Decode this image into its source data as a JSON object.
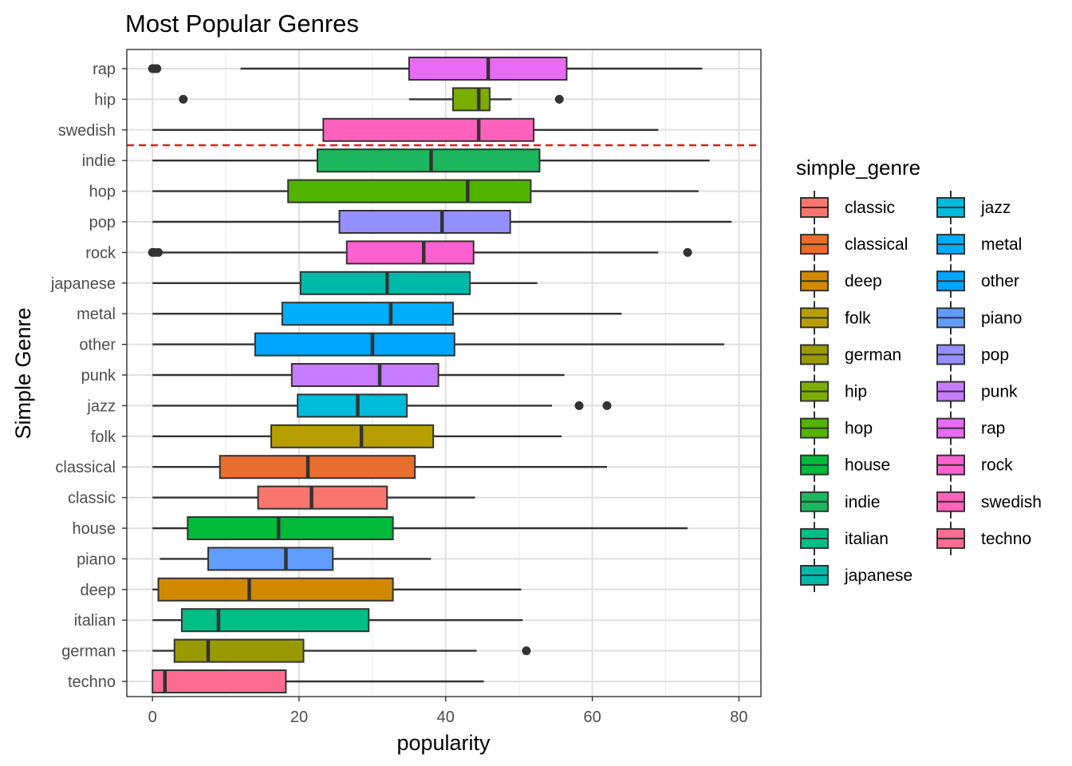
{
  "chart_data": {
    "type": "boxplot",
    "orientation": "horizontal",
    "title": "Most Popular Genres",
    "xlabel": "popularity",
    "ylabel": "Simple Genre",
    "xlim": [
      -3.5,
      83
    ],
    "xticks": [
      0,
      20,
      40,
      60,
      80
    ],
    "grid": true,
    "reference_line": {
      "between": [
        "swedish",
        "indie"
      ],
      "color": "#E41A1C",
      "style": "dashed"
    },
    "categories": [
      "rap",
      "hip",
      "swedish",
      "indie",
      "hop",
      "pop",
      "rock",
      "japanese",
      "metal",
      "other",
      "punk",
      "jazz",
      "folk",
      "classical",
      "classic",
      "house",
      "piano",
      "deep",
      "italian",
      "german",
      "techno"
    ],
    "boxes": [
      {
        "genre": "rap",
        "whisker_low": 12,
        "q1": 35,
        "median": 45.8,
        "q3": 56.5,
        "whisker_high": 75,
        "outliers": [
          0,
          0.3,
          0.6
        ],
        "color": "#E76BF3"
      },
      {
        "genre": "hip",
        "whisker_low": 35,
        "q1": 41,
        "median": 44.5,
        "q3": 46,
        "whisker_high": 49,
        "outliers": [
          4.2,
          55.5
        ],
        "color": "#7CAE00"
      },
      {
        "genre": "swedish",
        "whisker_low": 0,
        "q1": 23.3,
        "median": 44.5,
        "q3": 52,
        "whisker_high": 69,
        "outliers": [],
        "color": "#FF62BC"
      },
      {
        "genre": "indie",
        "whisker_low": 0,
        "q1": 22.5,
        "median": 38,
        "q3": 52.8,
        "whisker_high": 76,
        "outliers": [],
        "color": "#1CB75E"
      },
      {
        "genre": "hop",
        "whisker_low": 0,
        "q1": 18.5,
        "median": 43,
        "q3": 51.6,
        "whisker_high": 74.5,
        "outliers": [],
        "color": "#53B400"
      },
      {
        "genre": "pop",
        "whisker_low": 0,
        "q1": 25.5,
        "median": 39.5,
        "q3": 48.8,
        "whisker_high": 79,
        "outliers": [],
        "color": "#9590FF"
      },
      {
        "genre": "rock",
        "whisker_low": 0,
        "q1": 26.5,
        "median": 37,
        "q3": 43.8,
        "whisker_high": 69,
        "outliers": [
          0,
          0.3,
          0.8,
          73
        ],
        "color": "#FD61D1"
      },
      {
        "genre": "japanese",
        "whisker_low": 0,
        "q1": 20.2,
        "median": 32,
        "q3": 43.3,
        "whisker_high": 52.5,
        "outliers": [],
        "color": "#00B8A8"
      },
      {
        "genre": "metal",
        "whisker_low": 0,
        "q1": 17.7,
        "median": 32.5,
        "q3": 41,
        "whisker_high": 64,
        "outliers": [],
        "color": "#00ADFA"
      },
      {
        "genre": "other",
        "whisker_low": 0,
        "q1": 14,
        "median": 30,
        "q3": 41.2,
        "whisker_high": 78,
        "outliers": [],
        "color": "#00A5FF"
      },
      {
        "genre": "punk",
        "whisker_low": 0,
        "q1": 19,
        "median": 31,
        "q3": 39,
        "whisker_high": 56.2,
        "outliers": [],
        "color": "#C77CFF"
      },
      {
        "genre": "jazz",
        "whisker_low": 0,
        "q1": 19.8,
        "median": 28,
        "q3": 34.7,
        "whisker_high": 54.5,
        "outliers": [
          58.2,
          62
        ],
        "color": "#00BBDA"
      },
      {
        "genre": "folk",
        "whisker_low": 0,
        "q1": 16.2,
        "median": 28.5,
        "q3": 38.3,
        "whisker_high": 55.8,
        "outliers": [],
        "color": "#B79F00"
      },
      {
        "genre": "classical",
        "whisker_low": 0,
        "q1": 9.2,
        "median": 21.2,
        "q3": 35.8,
        "whisker_high": 62,
        "outliers": [],
        "color": "#E86E2D"
      },
      {
        "genre": "classic",
        "whisker_low": 0,
        "q1": 14.4,
        "median": 21.7,
        "q3": 32,
        "whisker_high": 44,
        "outliers": [],
        "color": "#F8766D"
      },
      {
        "genre": "house",
        "whisker_low": 0,
        "q1": 4.8,
        "median": 17.2,
        "q3": 32.8,
        "whisker_high": 73,
        "outliers": [],
        "color": "#00BA38"
      },
      {
        "genre": "piano",
        "whisker_low": 1,
        "q1": 7.6,
        "median": 18.2,
        "q3": 24.6,
        "whisker_high": 38,
        "outliers": [],
        "color": "#619CFF"
      },
      {
        "genre": "deep",
        "whisker_low": 0,
        "q1": 0.8,
        "median": 13.2,
        "q3": 32.8,
        "whisker_high": 50.3,
        "outliers": [],
        "color": "#D18A00"
      },
      {
        "genre": "italian",
        "whisker_low": 0,
        "q1": 4,
        "median": 9,
        "q3": 29.5,
        "whisker_high": 50.5,
        "outliers": [],
        "color": "#00BE85"
      },
      {
        "genre": "german",
        "whisker_low": 0,
        "q1": 3,
        "median": 7.6,
        "q3": 20.6,
        "whisker_high": 44.2,
        "outliers": [
          51
        ],
        "color": "#999A00"
      },
      {
        "genre": "techno",
        "whisker_low": 0,
        "q1": 0,
        "median": 1.7,
        "q3": 18.2,
        "whisker_high": 45.2,
        "outliers": [],
        "color": "#FF6C91"
      }
    ],
    "legend": {
      "title": "simple_genre",
      "position": "right",
      "entries": [
        {
          "label": "classic",
          "color": "#F8766D"
        },
        {
          "label": "classical",
          "color": "#E86E2D"
        },
        {
          "label": "deep",
          "color": "#D18A00"
        },
        {
          "label": "folk",
          "color": "#B79F00"
        },
        {
          "label": "german",
          "color": "#999A00"
        },
        {
          "label": "hip",
          "color": "#7CAE00"
        },
        {
          "label": "hop",
          "color": "#53B400"
        },
        {
          "label": "house",
          "color": "#00BA38"
        },
        {
          "label": "indie",
          "color": "#1CB75E"
        },
        {
          "label": "italian",
          "color": "#00BE85"
        },
        {
          "label": "japanese",
          "color": "#00B8A8"
        },
        {
          "label": "jazz",
          "color": "#00BBDA"
        },
        {
          "label": "metal",
          "color": "#00ADFA"
        },
        {
          "label": "other",
          "color": "#00A5FF"
        },
        {
          "label": "piano",
          "color": "#619CFF"
        },
        {
          "label": "pop",
          "color": "#9590FF"
        },
        {
          "label": "punk",
          "color": "#C77CFF"
        },
        {
          "label": "rap",
          "color": "#E76BF3"
        },
        {
          "label": "rock",
          "color": "#FD61D1"
        },
        {
          "label": "swedish",
          "color": "#FF62BC"
        },
        {
          "label": "techno",
          "color": "#FF6C91"
        }
      ]
    }
  }
}
